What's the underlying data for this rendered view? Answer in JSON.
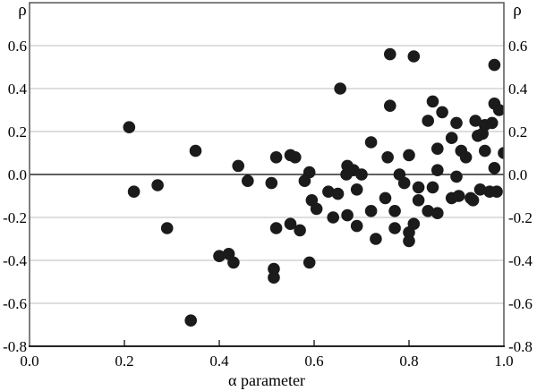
{
  "chart_data": {
    "type": "scatter",
    "title": "",
    "xlabel": "α parameter",
    "ylabel_left": "ρ",
    "ylabel_right": "ρ",
    "xlim": [
      0.0,
      1.0
    ],
    "ylim": [
      -0.8,
      0.8
    ],
    "x_ticks": [
      0.0,
      0.2,
      0.4,
      0.6,
      0.8,
      1.0
    ],
    "y_ticks": [
      0.6,
      0.4,
      0.2,
      0.0,
      -0.2,
      -0.4,
      -0.6,
      -0.8
    ],
    "grid": "horizontal-only",
    "legend": "none",
    "zero_line": true,
    "marker": "filled-circle",
    "point_color": "#1b1b1b",
    "grid_color": "#c9c9c9",
    "border_color": "#565656",
    "axis_color": "#111111",
    "point_radius_px": 6.8,
    "points": [
      [
        0.21,
        0.22
      ],
      [
        0.22,
        -0.08
      ],
      [
        0.27,
        -0.05
      ],
      [
        0.29,
        -0.25
      ],
      [
        0.34,
        -0.68
      ],
      [
        0.35,
        0.11
      ],
      [
        0.4,
        -0.38
      ],
      [
        0.42,
        -0.37
      ],
      [
        0.43,
        -0.41
      ],
      [
        0.44,
        0.04
      ],
      [
        0.46,
        -0.03
      ],
      [
        0.51,
        -0.04
      ],
      [
        0.52,
        0.08
      ],
      [
        0.52,
        -0.25
      ],
      [
        0.515,
        -0.44
      ],
      [
        0.515,
        -0.48
      ],
      [
        0.55,
        0.09
      ],
      [
        0.55,
        -0.23
      ],
      [
        0.56,
        0.08
      ],
      [
        0.57,
        -0.26
      ],
      [
        0.58,
        -0.03
      ],
      [
        0.59,
        0.01
      ],
      [
        0.595,
        -0.12
      ],
      [
        0.605,
        -0.16
      ],
      [
        0.59,
        -0.41
      ],
      [
        0.63,
        -0.08
      ],
      [
        0.64,
        -0.2
      ],
      [
        0.65,
        -0.09
      ],
      [
        0.655,
        0.4
      ],
      [
        0.67,
        0.04
      ],
      [
        0.668,
        0.0
      ],
      [
        0.683,
        0.02
      ],
      [
        0.7,
        0.0
      ],
      [
        0.67,
        -0.19
      ],
      [
        0.69,
        -0.07
      ],
      [
        0.69,
        -0.24
      ],
      [
        0.72,
        0.15
      ],
      [
        0.72,
        -0.17
      ],
      [
        0.73,
        -0.3
      ],
      [
        0.75,
        -0.11
      ],
      [
        0.755,
        0.08
      ],
      [
        0.76,
        0.56
      ],
      [
        0.76,
        0.32
      ],
      [
        0.77,
        -0.17
      ],
      [
        0.77,
        -0.25
      ],
      [
        0.78,
        0.0
      ],
      [
        0.79,
        -0.04
      ],
      [
        0.8,
        0.09
      ],
      [
        0.8,
        -0.27
      ],
      [
        0.8,
        -0.31
      ],
      [
        0.81,
        0.55
      ],
      [
        0.81,
        -0.23
      ],
      [
        0.82,
        -0.06
      ],
      [
        0.82,
        -0.12
      ],
      [
        0.84,
        0.25
      ],
      [
        0.84,
        -0.17
      ],
      [
        0.85,
        0.34
      ],
      [
        0.85,
        -0.06
      ],
      [
        0.86,
        0.12
      ],
      [
        0.86,
        0.02
      ],
      [
        0.86,
        -0.18
      ],
      [
        0.87,
        0.29
      ],
      [
        0.89,
        0.17
      ],
      [
        0.89,
        -0.11
      ],
      [
        0.9,
        0.24
      ],
      [
        0.9,
        -0.01
      ],
      [
        0.905,
        -0.1
      ],
      [
        0.91,
        0.11
      ],
      [
        0.92,
        0.08
      ],
      [
        0.93,
        -0.11
      ],
      [
        0.94,
        0.25
      ],
      [
        0.945,
        0.18
      ],
      [
        0.935,
        -0.12
      ],
      [
        0.95,
        -0.07
      ],
      [
        0.96,
        0.23
      ],
      [
        0.955,
        0.19
      ],
      [
        0.96,
        0.11
      ],
      [
        0.975,
        0.24
      ],
      [
        0.97,
        -0.08
      ],
      [
        0.98,
        0.51
      ],
      [
        0.98,
        0.33
      ],
      [
        0.98,
        0.03
      ],
      [
        0.985,
        -0.08
      ],
      [
        0.99,
        0.3
      ],
      [
        1.0,
        0.1
      ]
    ]
  }
}
